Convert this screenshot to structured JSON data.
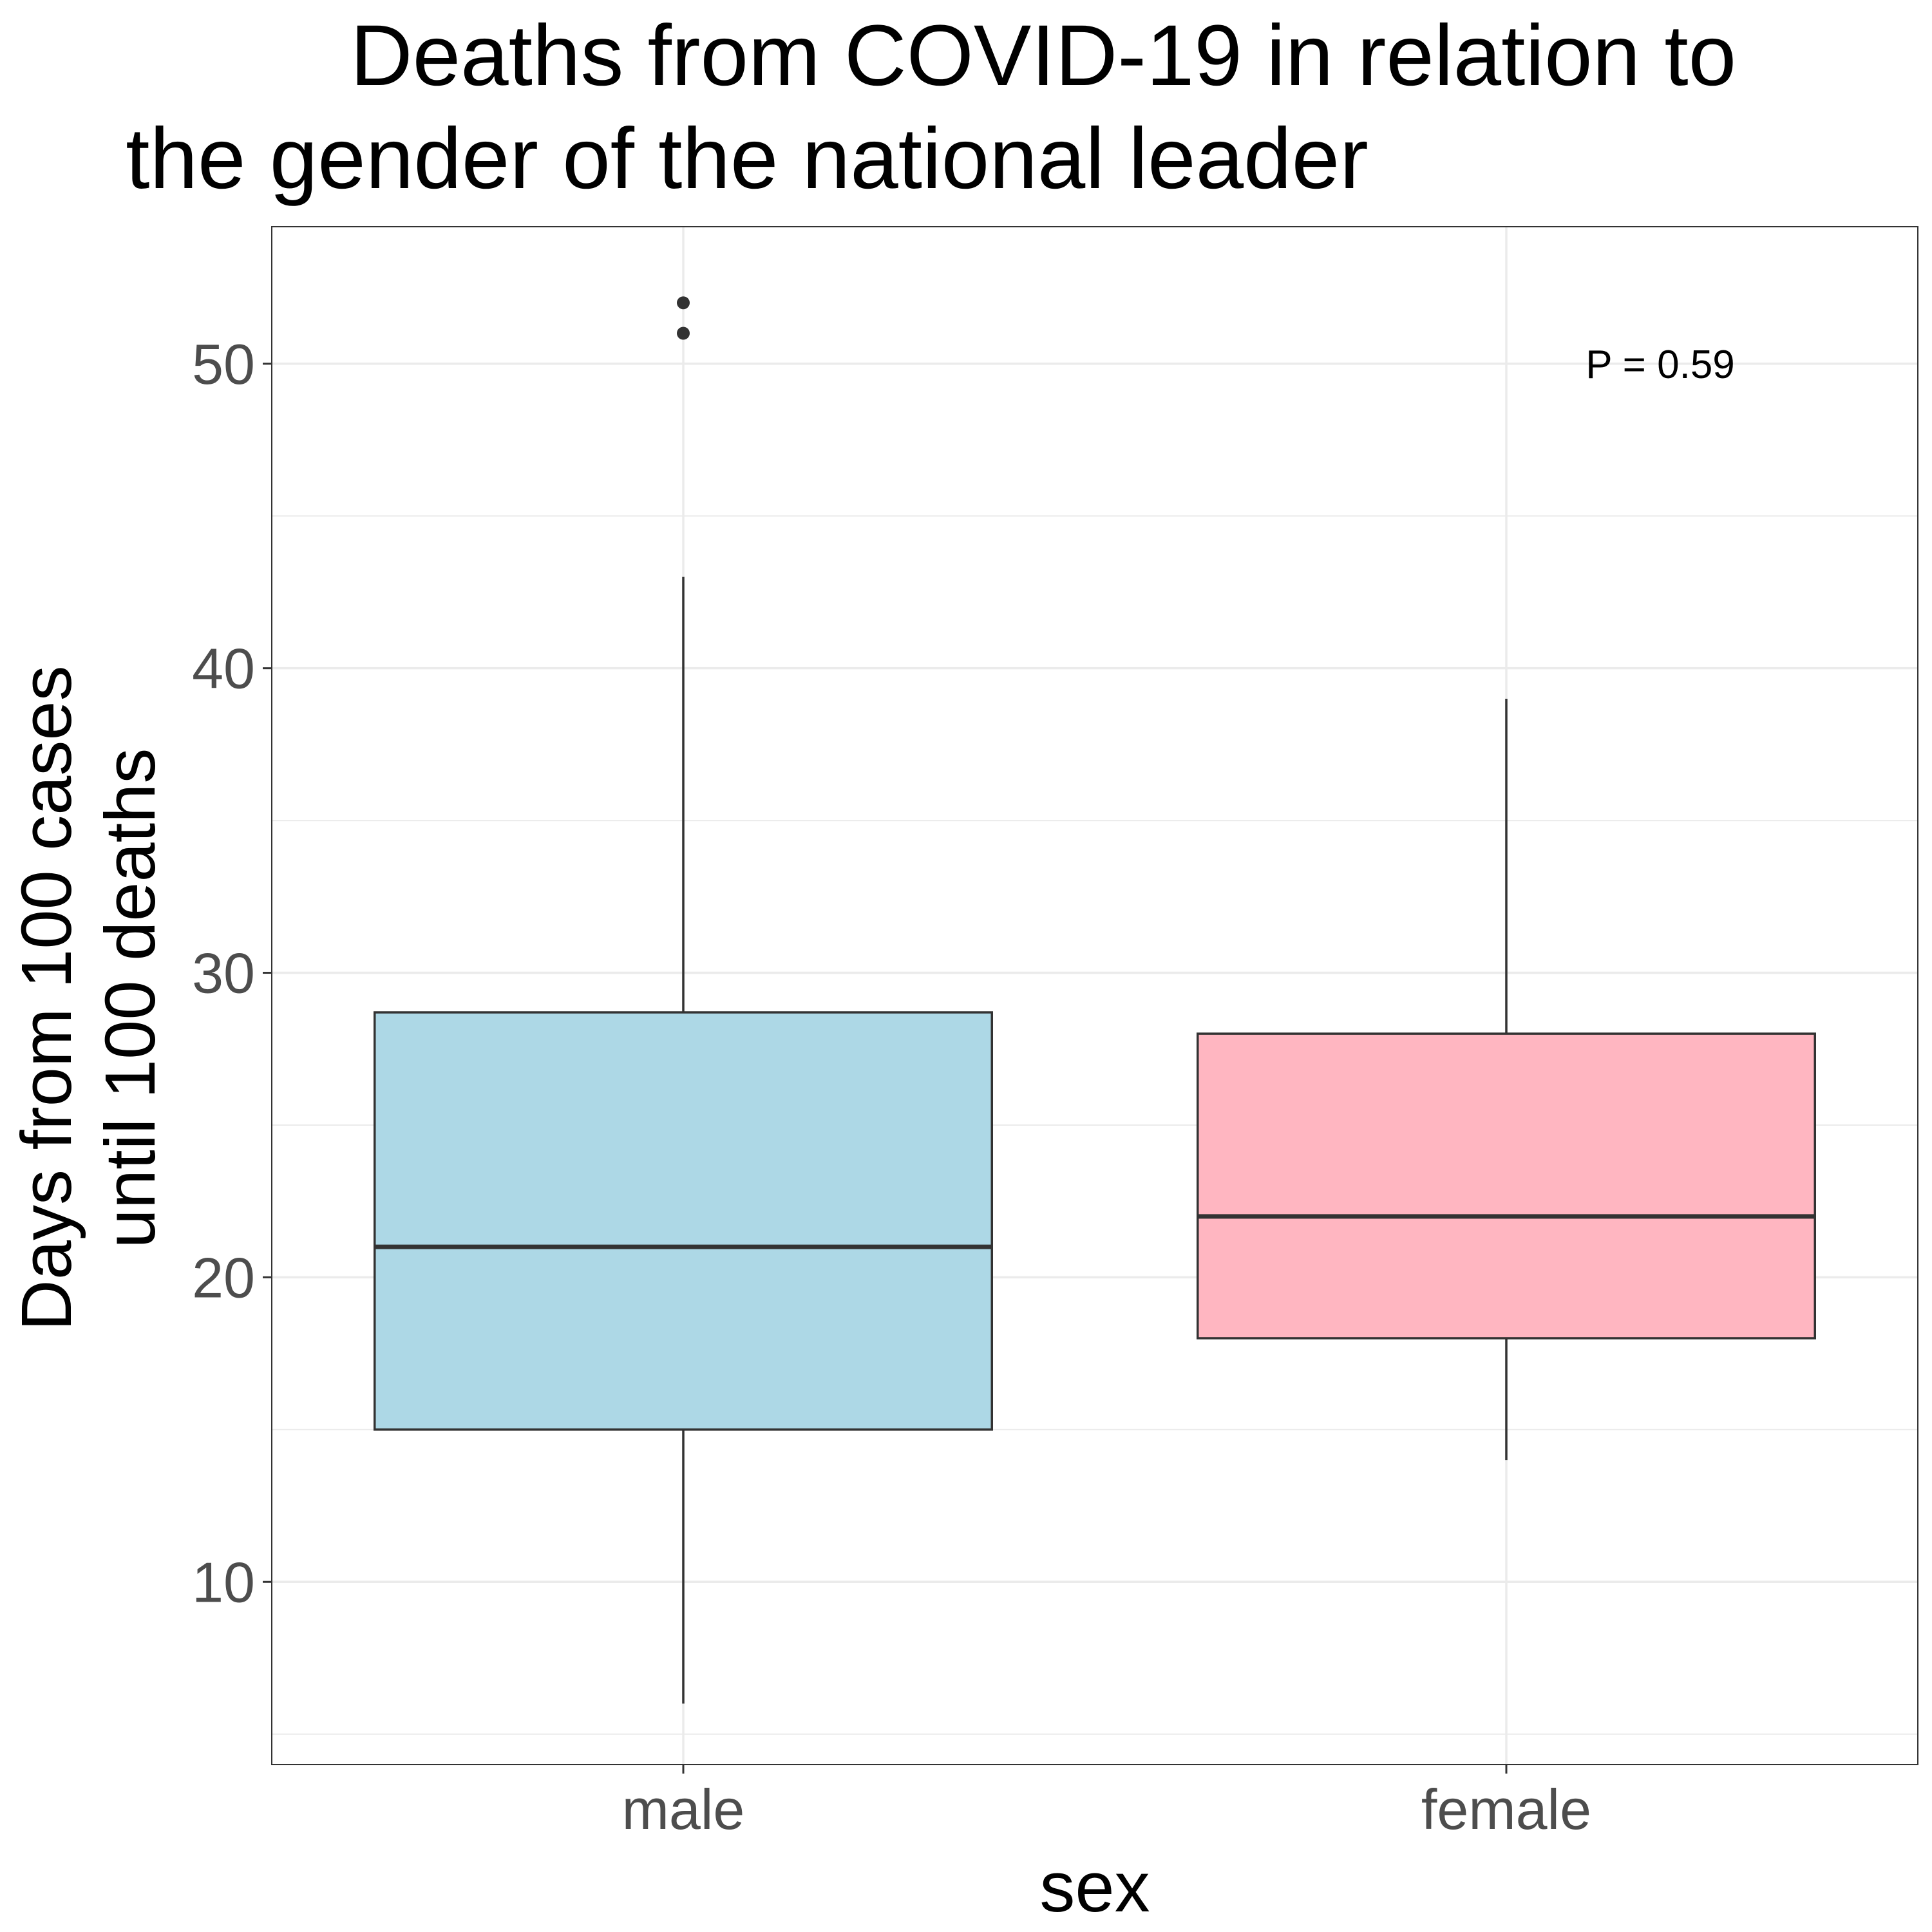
{
  "chart_data": {
    "type": "boxplot",
    "title_lines": [
      "Deaths from COVID-19 in relation to",
      "the gender of the national leader"
    ],
    "xlabel": "sex",
    "ylabel_lines": [
      "Days from 100 cases",
      "until 100 deaths"
    ],
    "ylim": [
      4,
      54.5
    ],
    "y_ticks": [
      10,
      20,
      30,
      40,
      50
    ],
    "y_minor_ticks": [
      5,
      15,
      25,
      35,
      45
    ],
    "grid": true,
    "categories": [
      "male",
      "female"
    ],
    "boxes": [
      {
        "category": "male",
        "whisker_low": 6,
        "q1": 15,
        "median": 21,
        "q3": 28.7,
        "whisker_high": 43,
        "outliers": [
          51,
          52
        ],
        "fill": "#add8e6"
      },
      {
        "category": "female",
        "whisker_low": 14,
        "q1": 18,
        "median": 22,
        "q3": 28,
        "whisker_high": 39,
        "outliers": [],
        "fill": "#ffb6c1"
      }
    ],
    "annotation": {
      "text": "P = 0.59",
      "x_category": "female",
      "y": 50
    }
  }
}
